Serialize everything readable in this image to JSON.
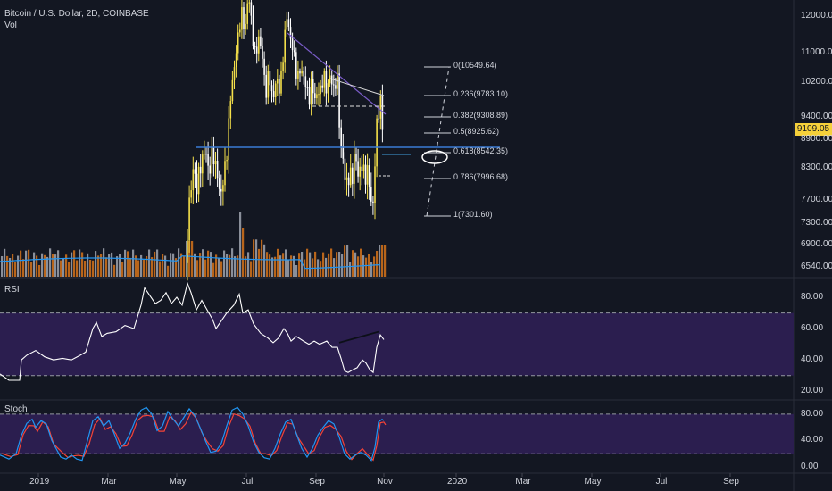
{
  "header": {
    "symbol_line": "Bitcoin / U.S. Dollar, 2D, COINBASE",
    "volume_label": "Vol"
  },
  "panes": {
    "rsi_label": "RSI",
    "stoch_label": "Stoch"
  },
  "price_badge": {
    "value": "9109.05",
    "color": "#f5d03a"
  },
  "colors": {
    "background": "#131722",
    "up_candle": "#f5e04a",
    "down_candle": "#ffffff",
    "volume_up": "#b8651b",
    "volume_down": "#8a8f9a",
    "volume_ma": "#2196f3",
    "osc_band": "#2b1e4f",
    "rsi_line": "#ffffff",
    "stoch_k": "#2196f3",
    "stoch_d": "#f44336",
    "support_line": "#3a7bd5",
    "trend_line": "#7a5cc8"
  },
  "chart_data": [
    {
      "type": "candlestick",
      "pane": "price",
      "title": "Bitcoin / U.S. Dollar, 2D, COINBASE",
      "y_ticks": [
        12000,
        11000,
        10200,
        9400,
        8900,
        8300,
        7700,
        7300,
        6900,
        6540
      ],
      "y_tick_labels": [
        "12000.00",
        "11000.00",
        "10200.00",
        "9400.00",
        "8900.00",
        "8300.00",
        "7700.00",
        "7300.00",
        "6900.00",
        "6540.00"
      ],
      "x_tick_labels": [
        "2019",
        "Mar",
        "May",
        "Jul",
        "Sep",
        "Nov",
        "2020",
        "Mar",
        "May",
        "Jul",
        "Sep"
      ],
      "last_price": 9109.05,
      "support_level": 8650,
      "fib_levels": [
        {
          "ratio": "0",
          "price": "10549.64"
        },
        {
          "ratio": "0.236",
          "price": "9783.10"
        },
        {
          "ratio": "0.382",
          "price": "9308.89"
        },
        {
          "ratio": "0.5",
          "price": "8925.62"
        },
        {
          "ratio": "0.618",
          "price": "8542.35"
        },
        {
          "ratio": "0.786",
          "price": "7996.68"
        },
        {
          "ratio": "1",
          "price": "7301.60"
        }
      ]
    },
    {
      "type": "line",
      "pane": "rsi",
      "title": "RSI",
      "y_ticks": [
        80,
        60,
        40,
        20
      ],
      "y_tick_labels": [
        "80.00",
        "60.00",
        "40.00",
        "20.00"
      ],
      "ylim": [
        15,
        92
      ],
      "bands": [
        30,
        70
      ]
    },
    {
      "type": "line",
      "pane": "stoch",
      "title": "Stoch",
      "y_ticks": [
        80,
        40,
        0
      ],
      "y_tick_labels": [
        "80.00",
        "40.00",
        "0.00"
      ],
      "ylim": [
        -8,
        100
      ],
      "bands": [
        20,
        80
      ]
    }
  ]
}
